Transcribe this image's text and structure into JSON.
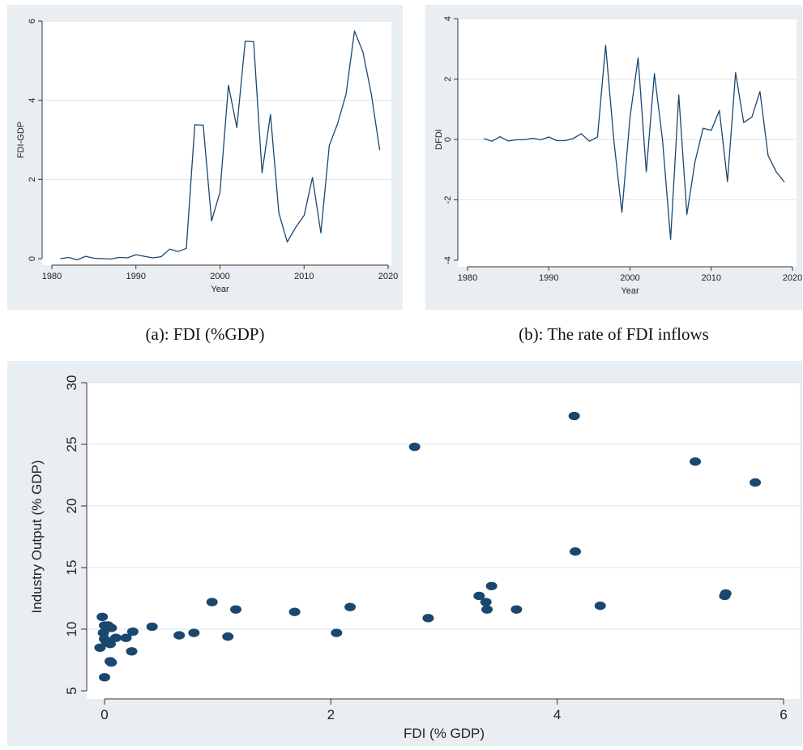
{
  "captions": {
    "a": "(a): FDI (%GDP)",
    "b": "(b): The rate of FDI inflows"
  },
  "colors": {
    "panel_bg": "#e9eef3",
    "plot_bg": "#ffffff",
    "series": "#1a476f"
  },
  "chart_data": [
    {
      "type": "line",
      "xlabel": "Year",
      "ylabel": "FDI-GDP",
      "xlim": [
        1980,
        2020
      ],
      "ylim": [
        0,
        6
      ],
      "xticks": [
        1980,
        1990,
        2000,
        2010,
        2020
      ],
      "yticks": [
        0,
        2,
        4,
        6
      ],
      "grid": true,
      "x": [
        1981,
        1982,
        1983,
        1984,
        1985,
        1986,
        1987,
        1988,
        1989,
        1990,
        1991,
        1992,
        1993,
        1994,
        1995,
        1996,
        1997,
        1998,
        1999,
        2000,
        2001,
        2002,
        2003,
        2004,
        2005,
        2006,
        2007,
        2008,
        2009,
        2010,
        2011,
        2012,
        2013,
        2014,
        2015,
        2016,
        2017,
        2018,
        2019
      ],
      "y": [
        0.0,
        0.03,
        -0.03,
        0.06,
        0.01,
        0.0,
        -0.01,
        0.03,
        0.02,
        0.1,
        0.06,
        0.02,
        0.05,
        0.24,
        0.18,
        0.26,
        3.38,
        3.37,
        0.95,
        1.68,
        4.38,
        3.31,
        5.49,
        5.48,
        2.17,
        3.64,
        1.16,
        0.42,
        0.79,
        1.09,
        2.05,
        0.65,
        2.86,
        3.42,
        4.16,
        5.75,
        5.22,
        4.15,
        2.74
      ]
    },
    {
      "type": "line",
      "xlabel": "Year",
      "ylabel": "DFDI",
      "xlim": [
        1980,
        2020
      ],
      "ylim": [
        -4,
        4
      ],
      "xticks": [
        1980,
        1990,
        2000,
        2010,
        2020
      ],
      "yticks": [
        -4,
        -2,
        0,
        2,
        4
      ],
      "grid": true,
      "x": [
        1982,
        1983,
        1984,
        1985,
        1986,
        1987,
        1988,
        1989,
        1990,
        1991,
        1992,
        1993,
        1994,
        1995,
        1996,
        1997,
        1998,
        1999,
        2000,
        2001,
        2002,
        2003,
        2004,
        2005,
        2006,
        2007,
        2008,
        2009,
        2010,
        2011,
        2012,
        2013,
        2014,
        2015,
        2016,
        2017,
        2018,
        2019
      ],
      "y": [
        0.03,
        -0.06,
        0.09,
        -0.05,
        -0.01,
        -0.01,
        0.04,
        -0.01,
        0.08,
        -0.04,
        -0.04,
        0.03,
        0.19,
        -0.06,
        0.08,
        3.12,
        -0.01,
        -2.42,
        0.73,
        2.7,
        -1.07,
        2.18,
        -0.01,
        -3.31,
        1.47,
        -2.48,
        -0.74,
        0.37,
        0.3,
        0.96,
        -1.4,
        2.21,
        0.56,
        0.74,
        1.59,
        -0.53,
        -1.07,
        -1.41
      ]
    },
    {
      "type": "scatter",
      "xlabel": "FDI (% GDP)",
      "ylabel": "Industry Output (% GDP)",
      "xlim": [
        0,
        6
      ],
      "ylim": [
        5,
        30
      ],
      "xticks": [
        0,
        2,
        4,
        6
      ],
      "yticks": [
        5,
        10,
        15,
        20,
        25,
        30
      ],
      "grid": true,
      "points": [
        [
          -0.02,
          11.0
        ],
        [
          0.0,
          10.3
        ],
        [
          0.03,
          10.3
        ],
        [
          0.06,
          10.1
        ],
        [
          -0.01,
          9.7
        ],
        [
          0.0,
          9.2
        ],
        [
          0.01,
          9.1
        ],
        [
          0.02,
          8.9
        ],
        [
          0.05,
          8.8
        ],
        [
          -0.04,
          8.5
        ],
        [
          0.1,
          9.3
        ],
        [
          0.19,
          9.3
        ],
        [
          0.25,
          9.8
        ],
        [
          0.42,
          10.2
        ],
        [
          0.24,
          8.2
        ],
        [
          0.05,
          7.4
        ],
        [
          0.06,
          7.3
        ],
        [
          0.0,
          6.1
        ],
        [
          0.66,
          9.5
        ],
        [
          0.79,
          9.7
        ],
        [
          0.95,
          12.2
        ],
        [
          1.09,
          9.4
        ],
        [
          1.16,
          11.6
        ],
        [
          1.68,
          11.4
        ],
        [
          2.05,
          9.7
        ],
        [
          2.17,
          11.8
        ],
        [
          2.74,
          24.8
        ],
        [
          2.86,
          10.9
        ],
        [
          3.31,
          12.7
        ],
        [
          3.37,
          12.2
        ],
        [
          3.38,
          11.6
        ],
        [
          3.42,
          13.5
        ],
        [
          3.64,
          11.6
        ],
        [
          4.15,
          27.3
        ],
        [
          4.16,
          16.3
        ],
        [
          4.38,
          11.9
        ],
        [
          5.22,
          23.6
        ],
        [
          5.48,
          12.7
        ],
        [
          5.49,
          12.9
        ],
        [
          5.75,
          21.9
        ]
      ]
    }
  ]
}
